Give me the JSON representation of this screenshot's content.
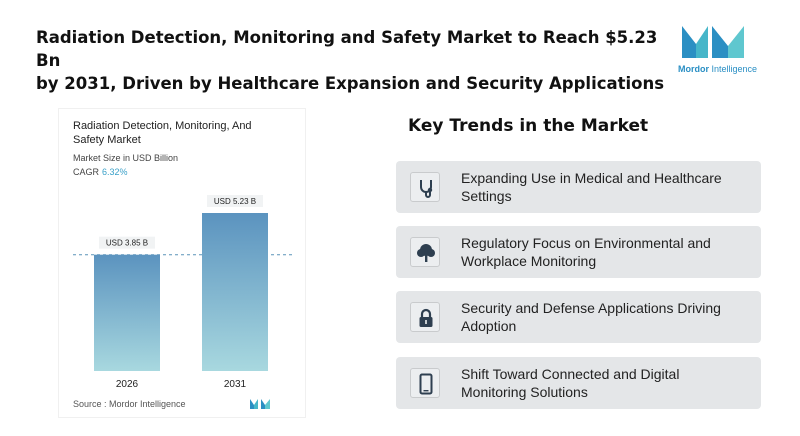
{
  "headline": {
    "line1": "Radiation Detection, Monitoring and Safety Market to Reach $5.23 Bn",
    "line2": "by 2031, Driven by Healthcare Expansion and Security Applications"
  },
  "brand": {
    "name_strong": "Mordor",
    "name_rest": " Intelligence",
    "icon": "mordor-intelligence-logo"
  },
  "chart_card": {
    "title_line1": "Radiation Detection, Monitoring, And",
    "title_line2": "Safety Market",
    "unit": "Market Size in USD Billion",
    "cagr_label": "CAGR",
    "cagr_value": "6.32%",
    "source": "Source : Mordor Intelligence"
  },
  "chart_data": {
    "type": "bar",
    "categories": [
      "2026",
      "2031"
    ],
    "values": [
      3.85,
      5.23
    ],
    "value_labels": [
      "USD 3.85 B",
      "USD 5.23 B"
    ],
    "title": "Radiation Detection, Monitoring, And Safety Market",
    "subtitle": "Market Size in USD Billion",
    "ylim": [
      0,
      5.23
    ],
    "grid": false,
    "colors": {
      "bar_top": "#5b93bf",
      "bar_bottom": "#a8d8df",
      "reference_line": "#5a93b8"
    }
  },
  "trends": {
    "title": "Key Trends in the Market",
    "items": [
      {
        "icon": "stethoscope-icon",
        "text1": "Expanding Use in Medical and Healthcare",
        "text2": "Settings"
      },
      {
        "icon": "tree-icon",
        "text1": "Regulatory Focus on Environmental and",
        "text2": "Workplace Monitoring"
      },
      {
        "icon": "lock-icon",
        "text1": "Security and Defense Applications Driving",
        "text2": "Adoption"
      },
      {
        "icon": "smartphone-icon",
        "text1": "Shift Toward Connected and Digital",
        "text2": "Monitoring Solutions"
      }
    ]
  },
  "colors": {
    "accent": "#2a8fc4",
    "trend_bg": "#e4e6e8"
  }
}
